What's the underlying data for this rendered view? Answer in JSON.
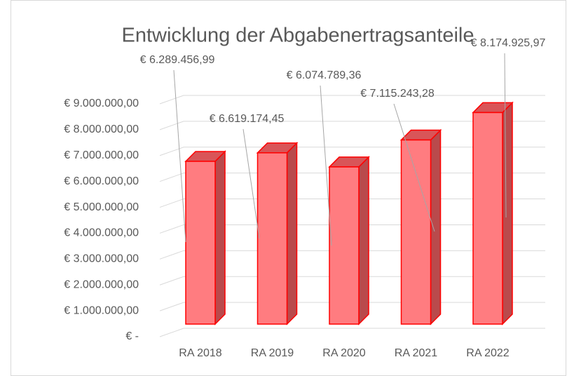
{
  "chart_data": {
    "type": "bar3d",
    "title": "Entwicklung der Abgabenertragsanteile",
    "categories": [
      "RA 2018",
      "RA 2019",
      "RA 2020",
      "RA 2021",
      "RA 2022"
    ],
    "values": [
      6289456.99,
      6619174.45,
      6074789.36,
      7115243.28,
      8174925.97
    ],
    "value_labels": [
      "€ 6.289.456,99",
      "€ 6.619.174,45",
      "€ 6.074.789,36",
      "€ 7.115.243,28",
      "€ 8.174.925,97"
    ],
    "color": "#ff7c80",
    "ylim": [
      0,
      9000000
    ],
    "yticks": [
      {
        "value": 0,
        "label": "€ -"
      },
      {
        "value": 1000000,
        "label": "€ 1.000.000,00"
      },
      {
        "value": 2000000,
        "label": "€ 2.000.000,00"
      },
      {
        "value": 3000000,
        "label": "€ 3.000.000,00"
      },
      {
        "value": 4000000,
        "label": "€ 4.000.000,00"
      },
      {
        "value": 5000000,
        "label": "€ 5.000.000,00"
      },
      {
        "value": 6000000,
        "label": "€ 6.000.000,00"
      },
      {
        "value": 7000000,
        "label": "€ 7.000.000,00"
      },
      {
        "value": 8000000,
        "label": "€ 8.000.000,00"
      },
      {
        "value": 9000000,
        "label": "€ 9.000.000,00"
      }
    ],
    "grid": true
  }
}
